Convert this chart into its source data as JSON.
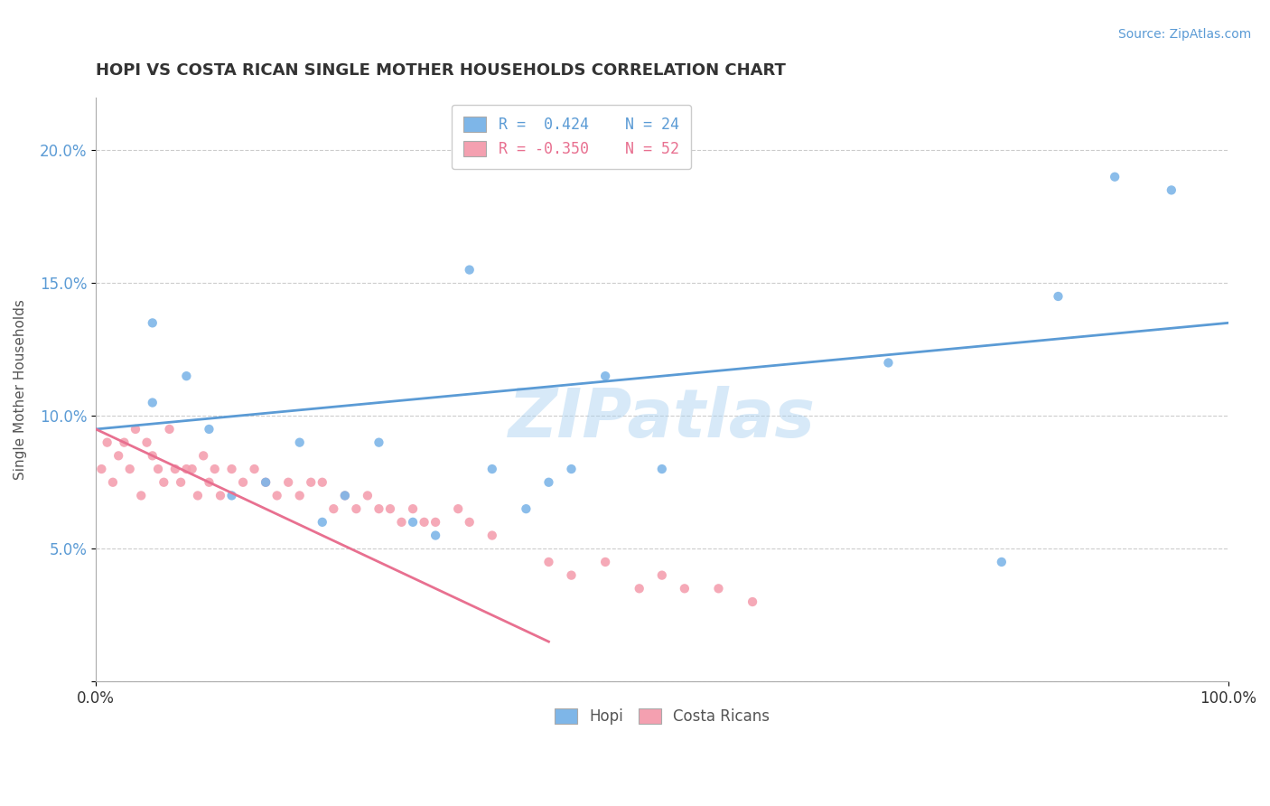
{
  "title": "HOPI VS COSTA RICAN SINGLE MOTHER HOUSEHOLDS CORRELATION CHART",
  "source_text": "Source: ZipAtlas.com",
  "ylabel": "Single Mother Households",
  "xlim": [
    0,
    100
  ],
  "ylim": [
    0,
    22
  ],
  "yticks": [
    0,
    5,
    10,
    15,
    20
  ],
  "ytick_labels": [
    "",
    "5.0%",
    "10.0%",
    "15.0%",
    "20.0%"
  ],
  "xticks": [
    0,
    100
  ],
  "xtick_labels": [
    "0.0%",
    "100.0%"
  ],
  "hopi_color": "#7EB6E8",
  "costa_color": "#F4A0B0",
  "hopi_line_color": "#5B9BD5",
  "costa_line_color": "#E87090",
  "watermark": "ZIPatlas",
  "background_color": "#FFFFFF",
  "grid_color": "#CCCCCC",
  "hopi_x": [
    5,
    5,
    8,
    10,
    12,
    15,
    18,
    20,
    22,
    25,
    28,
    30,
    33,
    35,
    38,
    40,
    42,
    45,
    50,
    70,
    80,
    85,
    90,
    95
  ],
  "hopi_y": [
    10.5,
    13.5,
    11.5,
    9.5,
    7,
    7.5,
    9,
    6,
    7,
    9,
    6,
    5.5,
    15.5,
    8,
    6.5,
    7.5,
    8,
    11.5,
    8,
    12,
    4.5,
    14.5,
    19,
    18.5
  ],
  "costa_x": [
    0.5,
    1,
    1.5,
    2,
    2.5,
    3,
    3.5,
    4,
    4.5,
    5,
    5.5,
    6,
    6.5,
    7,
    7.5,
    8,
    8.5,
    9,
    9.5,
    10,
    10.5,
    11,
    12,
    13,
    14,
    15,
    16,
    17,
    18,
    19,
    20,
    21,
    22,
    23,
    24,
    25,
    26,
    27,
    28,
    29,
    30,
    32,
    33,
    35,
    40,
    42,
    45,
    48,
    50,
    52,
    55,
    58
  ],
  "costa_y": [
    8,
    9,
    7.5,
    8.5,
    9,
    8,
    9.5,
    7,
    9,
    8.5,
    8,
    7.5,
    9.5,
    8,
    7.5,
    8,
    8,
    7,
    8.5,
    7.5,
    8,
    7,
    8,
    7.5,
    8,
    7.5,
    7,
    7.5,
    7,
    7.5,
    7.5,
    6.5,
    7,
    6.5,
    7,
    6.5,
    6.5,
    6,
    6.5,
    6,
    6,
    6.5,
    6,
    5.5,
    4.5,
    4,
    4.5,
    3.5,
    4,
    3.5,
    3.5,
    3
  ],
  "hopi_trend_x": [
    0,
    100
  ],
  "hopi_trend_y": [
    9.5,
    13.5
  ],
  "costa_trend_x": [
    0,
    40
  ],
  "costa_trend_y": [
    9.5,
    1.5
  ]
}
